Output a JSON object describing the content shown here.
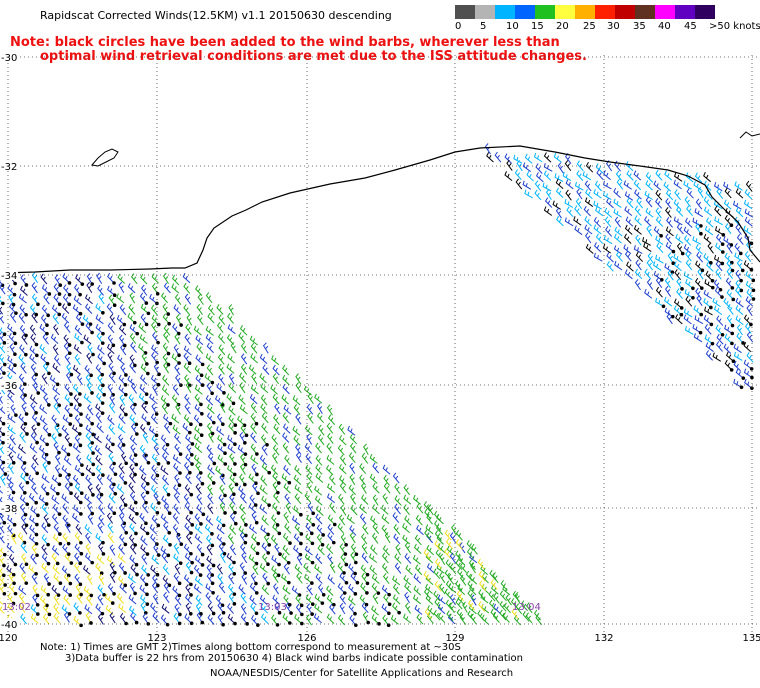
{
  "title": "Rapidscat Corrected Winds(12.5KM) v1.1 20150630 descending",
  "note": {
    "line1": "Note: black circles have been added to the wind barbs, wherever less than",
    "line2": "optimal wind retrieval conditions are met due to the ISS attitude changes."
  },
  "speed_scale": {
    "labels": [
      "0",
      "5",
      "10",
      "15",
      "20",
      "25",
      "30",
      "35",
      "40",
      "45",
      ">50 knots"
    ],
    "colors": [
      "#505050",
      "#b4b4b4",
      "#00b4ff",
      "#0064ff",
      "#20c020",
      "#ffff40",
      "#ffb000",
      "#ff2000",
      "#c00000",
      "#603020",
      "#ff00ff",
      "#6000c0",
      "#300060"
    ]
  },
  "map": {
    "lat_labels": [
      "-30",
      "-32",
      "-34",
      "-36",
      "-38",
      "-40"
    ],
    "lon_labels": [
      "120",
      "123",
      "126",
      "129",
      "132",
      "135"
    ],
    "time_labels": [
      "13:02",
      "13:03",
      "13:04"
    ]
  },
  "footer": {
    "line1": "Note: 1) Times are GMT 2)Times along bottom correspond to measurement at ~30S",
    "line2": "3)Data buffer is 22 hrs from 20150630 4) Black wind barbs indicate possible contamination",
    "line3": "NOAA/NESDIS/Center for Satellite Applications and Research"
  }
}
